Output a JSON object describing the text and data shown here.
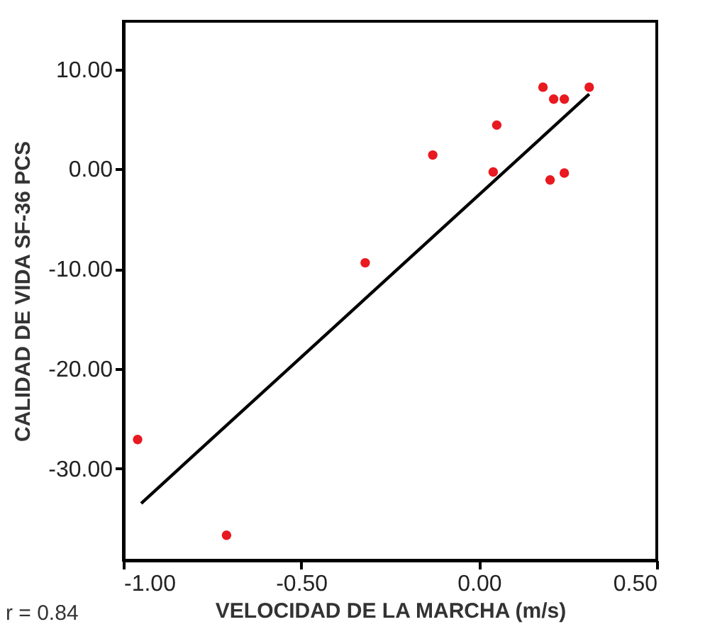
{
  "chart_data": {
    "type": "scatter",
    "xlabel": "VELOCIDAD DE LA MARCHA (m/s)",
    "ylabel": "CALIDAD DE VIDA SF-36 PCS",
    "xlim": [
      -1.0,
      0.5
    ],
    "xticks": [
      {
        "value": -1,
        "label": "-1.00"
      },
      {
        "value": -0.5,
        "label": "-0.50"
      },
      {
        "value": 0,
        "label": "0.00"
      },
      {
        "value": 0.5,
        "label": "0.50"
      }
    ],
    "ylim": [
      -39.2,
      14.8
    ],
    "yticks": [
      {
        "value": -30,
        "label": "-30.00"
      },
      {
        "value": -20,
        "label": "-20.00"
      },
      {
        "value": -10,
        "label": "-10.00"
      },
      {
        "value": 0,
        "label": "0.00"
      },
      {
        "value": 10,
        "label": "10.00"
      }
    ],
    "grid": false,
    "marker": "circle",
    "series": [
      {
        "type": "scatter",
        "color": "#e8191f",
        "x": [
          0.18,
          0.21,
          0.24,
          0.31,
          0.05,
          -0.13,
          0.04,
          0.2,
          0.24,
          -0.32,
          -0.96,
          -0.71
        ],
        "values": [
          8.2,
          7.0,
          7.0,
          8.2,
          4.4,
          1.4,
          -0.3,
          -1.1,
          -0.4,
          -9.4,
          -27.1,
          -36.7
        ]
      },
      {
        "type": "line",
        "marker": "none",
        "color": "#000000",
        "x": [
          -0.95,
          0.31
        ],
        "values": [
          -33.5,
          7.5
        ]
      }
    ],
    "annotations": [
      "r = 0.84"
    ]
  }
}
